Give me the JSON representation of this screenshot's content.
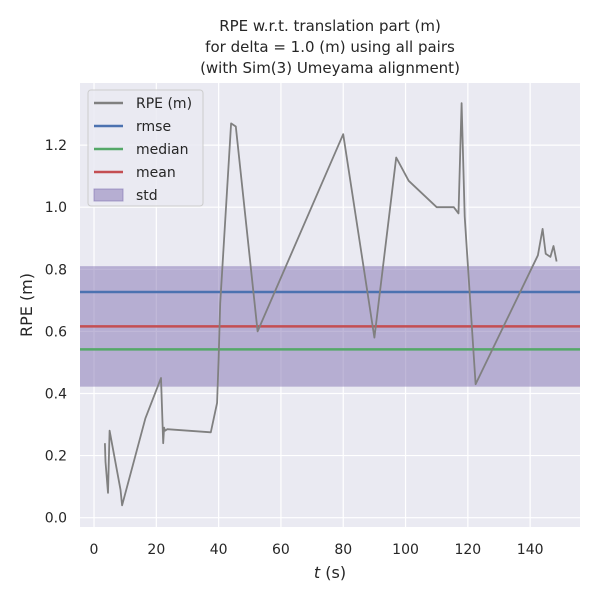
{
  "chart_data": {
    "type": "line",
    "title_lines": [
      "RPE w.r.t. translation part (m)",
      "for delta = 1.0 (m) using all pairs",
      "(with Sim(3) Umeyama alignment)"
    ],
    "xlabel_italic": "t",
    "xlabel_rest": " (s)",
    "ylabel": "RPE (m)",
    "xlim": [
      -4.5,
      156
    ],
    "ylim": [
      -0.03,
      1.4
    ],
    "xticks": [
      0,
      20,
      40,
      60,
      80,
      100,
      120,
      140
    ],
    "yticks": [
      0.0,
      0.2,
      0.4,
      0.6,
      0.8,
      1.0,
      1.2
    ],
    "ytick_labels": [
      "0.0",
      "0.2",
      "0.4",
      "0.6",
      "0.8",
      "1.0",
      "1.2"
    ],
    "grid": true,
    "legend_position": "top-left",
    "series": [
      {
        "name": "RPE (m)",
        "color": "#808080",
        "x": [
          3.5,
          3.7,
          4.5,
          5.0,
          8.5,
          9.0,
          16.5,
          21.5,
          22.2,
          22.5,
          22.8,
          23.5,
          37.5,
          39.5,
          40.0,
          40.5,
          44.0,
          45.5,
          52.5,
          80.0,
          90.0,
          97.0,
          101.0,
          110.0,
          115.5,
          117.0,
          118.0,
          119.0,
          122.5,
          142.5,
          144.0,
          145.0,
          146.5,
          147.5,
          148.5
        ],
        "y": [
          0.24,
          0.18,
          0.08,
          0.28,
          0.09,
          0.04,
          0.32,
          0.45,
          0.24,
          0.29,
          0.28,
          0.285,
          0.275,
          0.37,
          0.51,
          0.69,
          1.27,
          1.26,
          0.6,
          1.235,
          0.58,
          1.16,
          1.085,
          1.0,
          1.0,
          0.98,
          1.335,
          0.97,
          0.43,
          0.845,
          0.93,
          0.85,
          0.84,
          0.875,
          0.825
        ]
      }
    ],
    "stats": [
      {
        "name": "rmse",
        "value": 0.727,
        "color": "#4c72b0"
      },
      {
        "name": "median",
        "value": 0.542,
        "color": "#55a868"
      },
      {
        "name": "mean",
        "value": 0.616,
        "color": "#c44e52"
      }
    ],
    "std_band": {
      "name": "std",
      "low": 0.422,
      "high": 0.81,
      "color": "#8172b2"
    },
    "legend": [
      {
        "label": "RPE (m)",
        "kind": "line",
        "color": "#808080"
      },
      {
        "label": "rmse",
        "kind": "line",
        "color": "#4c72b0"
      },
      {
        "label": "median",
        "kind": "line",
        "color": "#55a868"
      },
      {
        "label": "mean",
        "kind": "line",
        "color": "#c44e52"
      },
      {
        "label": "std",
        "kind": "patch",
        "color": "#8172b2"
      }
    ]
  }
}
